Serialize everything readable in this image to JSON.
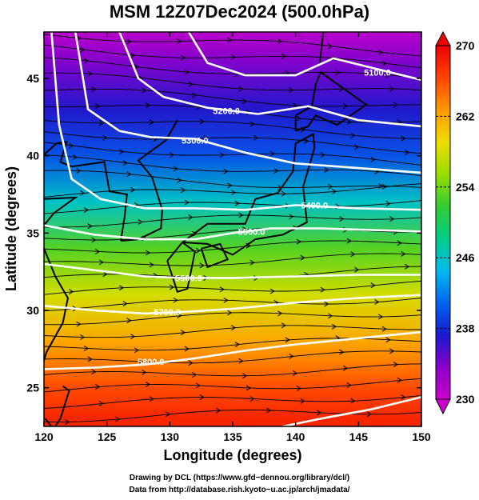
{
  "chart_data": {
    "type": "heatmap",
    "title": "MSM 12Z07Dec2024 (500.0hPa)",
    "xlabel": "Longitude (degrees)",
    "ylabel": "Latitude  (degrees)",
    "xlim": [
      120,
      150
    ],
    "ylim": [
      22.5,
      48
    ],
    "x_ticks": [
      120,
      125,
      130,
      135,
      140,
      145,
      150
    ],
    "y_ticks": [
      25,
      30,
      35,
      40,
      45
    ],
    "shaded_field": "temperature",
    "colorbar": {
      "min": 230,
      "max": 270,
      "ticks": [
        230,
        238,
        246,
        254,
        262,
        270
      ],
      "colormap": [
        "#cc00cc",
        "#8a00cc",
        "#1a1acc",
        "#0066ee",
        "#00bbee",
        "#00cc88",
        "#33cc33",
        "#99dd00",
        "#eedd00",
        "#ff9900",
        "#ff4400",
        "#ee0000"
      ]
    },
    "temperature_by_latitude": [
      {
        "lat": 23,
        "value": 268
      },
      {
        "lat": 25,
        "value": 266
      },
      {
        "lat": 28,
        "value": 262
      },
      {
        "lat": 31,
        "value": 258
      },
      {
        "lat": 34,
        "value": 253
      },
      {
        "lat": 37,
        "value": 246
      },
      {
        "lat": 40,
        "value": 240
      },
      {
        "lat": 43,
        "value": 237
      },
      {
        "lat": 46,
        "value": 234
      },
      {
        "lat": 48,
        "value": 231
      }
    ],
    "contours": [
      {
        "label": "5100.0",
        "points": [
          [
            131.5,
            48
          ],
          [
            133,
            46
          ],
          [
            136,
            45.2
          ],
          [
            140,
            45.2
          ],
          [
            143,
            46.3
          ],
          [
            146,
            45.7
          ],
          [
            150,
            44.9
          ]
        ],
        "label_at": [
          146.5,
          45.4
        ]
      },
      {
        "label": "5200.0",
        "points": [
          [
            126,
            48
          ],
          [
            127.5,
            45
          ],
          [
            129.5,
            43.8
          ],
          [
            133,
            43.1
          ],
          [
            137,
            42.7
          ],
          [
            141,
            43.2
          ],
          [
            145,
            42.3
          ],
          [
            150,
            41.9
          ]
        ],
        "label_at": [
          134.5,
          42.9
        ]
      },
      {
        "label": "5300.0",
        "points": [
          [
            122.5,
            48
          ],
          [
            123.5,
            43
          ],
          [
            126,
            41.6
          ],
          [
            128.5,
            41.2
          ],
          [
            132,
            41.1
          ],
          [
            136,
            40.2
          ],
          [
            140,
            39.5
          ],
          [
            145,
            39.2
          ],
          [
            150,
            38.9
          ]
        ],
        "label_at": [
          132,
          41.0
        ]
      },
      {
        "label": "5400.0",
        "points": [
          [
            120.6,
            48
          ],
          [
            121.2,
            42
          ],
          [
            122.2,
            38.5
          ],
          [
            124.5,
            37.2
          ],
          [
            128,
            36.6
          ],
          [
            132,
            36.6
          ],
          [
            136,
            36.5
          ],
          [
            140,
            36.8
          ],
          [
            145,
            36.6
          ],
          [
            150,
            36.5
          ]
        ],
        "label_at": [
          141.5,
          36.8
        ]
      },
      {
        "label": "5500.0",
        "points": [
          [
            120,
            35.5
          ],
          [
            124,
            34.9
          ],
          [
            128,
            34.6
          ],
          [
            132,
            34.6
          ],
          [
            135,
            35
          ],
          [
            138,
            35.3
          ],
          [
            142,
            35.3
          ],
          [
            146,
            35.2
          ],
          [
            150,
            35.1
          ]
        ],
        "label_at": [
          136.5,
          35.1
        ]
      },
      {
        "label": "5600.0",
        "points": [
          [
            120,
            33
          ],
          [
            124,
            32.6
          ],
          [
            128,
            32.2
          ],
          [
            131,
            32.1
          ],
          [
            135,
            32.1
          ],
          [
            140,
            32.2
          ],
          [
            145,
            32.3
          ],
          [
            150,
            32.3
          ]
        ],
        "label_at": [
          131.5,
          32.1
        ]
      },
      {
        "label": "5700.0",
        "points": [
          [
            120,
            30.3
          ],
          [
            124,
            30
          ],
          [
            128,
            29.8
          ],
          [
            131,
            29.9
          ],
          [
            135,
            30.1
          ],
          [
            140,
            30.5
          ],
          [
            145,
            30.8
          ],
          [
            150,
            31
          ]
        ],
        "label_at": [
          129.8,
          29.9
        ]
      },
      {
        "label": "5800.0",
        "points": [
          [
            120,
            26.2
          ],
          [
            124,
            26.3
          ],
          [
            128,
            26.5
          ],
          [
            132,
            26.9
          ],
          [
            136,
            27.4
          ],
          [
            140,
            27.8
          ],
          [
            145,
            28.2
          ],
          [
            150,
            28.6
          ]
        ],
        "label_at": [
          128.5,
          26.7
        ]
      },
      {
        "label": "",
        "points": [
          [
            139,
            22.5
          ],
          [
            142,
            23
          ],
          [
            146,
            23.6
          ],
          [
            150,
            24.4
          ]
        ],
        "label_at": null
      }
    ],
    "wind_field": "streamlines"
  },
  "credits": {
    "line1": "Drawing by DCL (https://www.gfd−dennou.org/library/dcl/)",
    "line2": "Data from http://database.rish.kyoto−u.ac.jp/arch/jmadata/"
  }
}
